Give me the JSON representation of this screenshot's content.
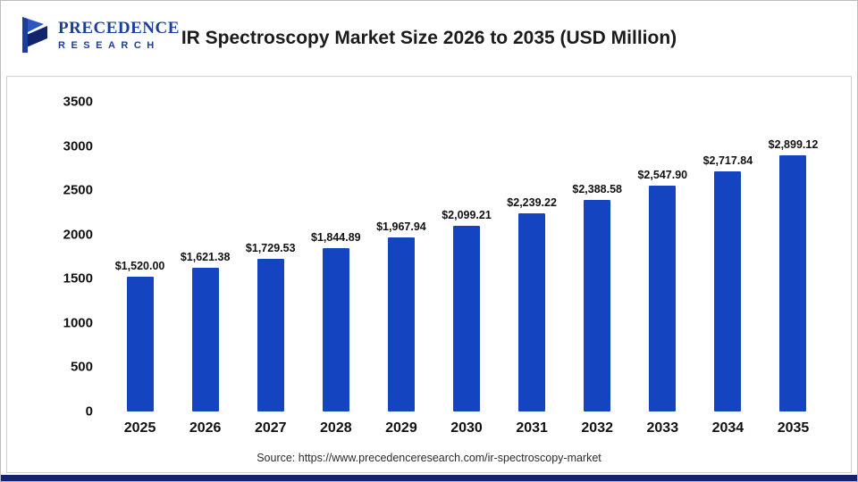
{
  "header": {
    "logo_line1": "PRECEDENCE",
    "logo_line2": "RESEARCH",
    "title": "IR Spectroscopy Market Size 2026 to 2035 (USD Million)"
  },
  "chart_data": {
    "type": "bar",
    "title": "IR Spectroscopy Market Size 2026 to 2035 (USD Million)",
    "categories": [
      "2025",
      "2026",
      "2027",
      "2028",
      "2029",
      "2030",
      "2031",
      "2032",
      "2033",
      "2034",
      "2035"
    ],
    "values": [
      1520.0,
      1621.38,
      1729.53,
      1844.89,
      1967.94,
      2099.21,
      2239.22,
      2388.58,
      2547.9,
      2717.84,
      2899.12
    ],
    "value_labels": [
      "$1,520.00",
      "$1,621.38",
      "$1,729.53",
      "$1,844.89",
      "$1,967.94",
      "$2,099.21",
      "$2,239.22",
      "$2,388.58",
      "$2,547.90",
      "$2,717.84",
      "$2,899.12"
    ],
    "xlabel": "",
    "ylabel": "",
    "ylim": [
      0,
      3500
    ],
    "y_ticks": [
      0,
      500,
      1000,
      1500,
      2000,
      2500,
      3000,
      3500
    ],
    "grid": false,
    "legend": false,
    "bar_color": "#1544C0"
  },
  "footer": {
    "source": "Source: https://www.precedenceresearch.com/ir-spectroscopy-market"
  },
  "colors": {
    "accent": "#1544C0",
    "logo_blue": "#1C3E9C",
    "logo_light_blue": "#2C56C0",
    "bottom_strip": "#14246B",
    "title_text": "#1b1b1b"
  }
}
